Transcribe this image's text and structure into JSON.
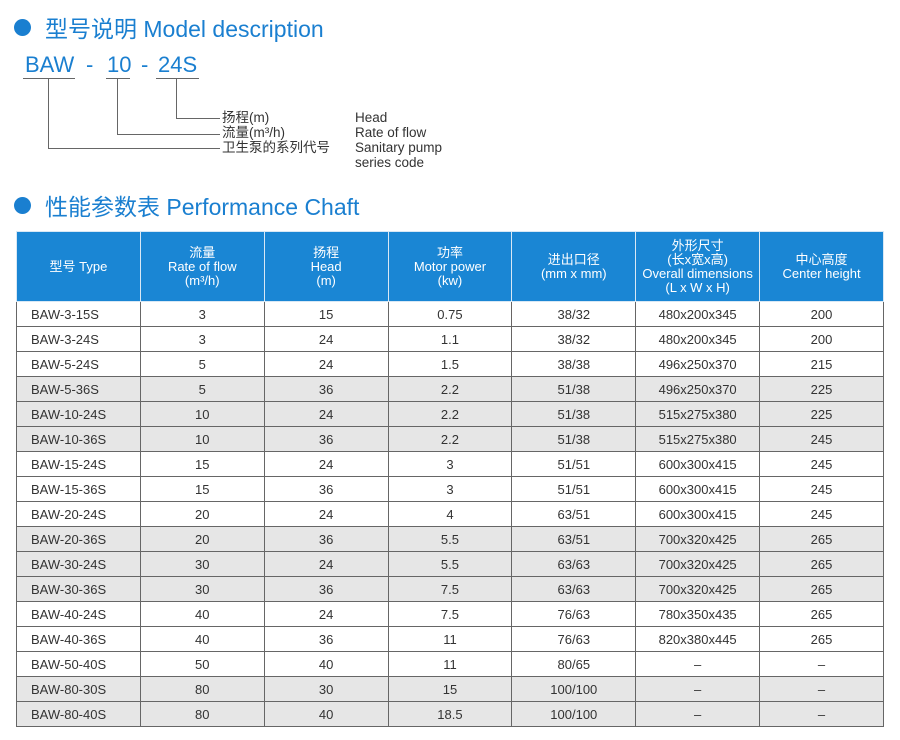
{
  "section1": {
    "title": "型号说明 Model description"
  },
  "model_code": {
    "part1": "BAW",
    "sep1": "-",
    "part2": "10",
    "sep2": "-",
    "part3": "24S"
  },
  "legend": [
    {
      "cn": "扬程(m)",
      "en": "Head"
    },
    {
      "cn": "流量(m³/h)",
      "en": "Rate of flow"
    },
    {
      "cn": "卫生泵的系列代号",
      "en": "Sanitary pump",
      "en2": "series code"
    }
  ],
  "section2": {
    "title": "性能参数表 Performance Chaft"
  },
  "colors": {
    "accent": "#1a7fd0",
    "header_bg": "#1a86d4",
    "stripe": "#e6e6e6"
  },
  "table": {
    "headers": [
      [
        "型号 Type"
      ],
      [
        "流量",
        "Rate of flow",
        "(m³/h)"
      ],
      [
        "扬程",
        "Head",
        "(m)"
      ],
      [
        "功率",
        "Motor power",
        "(kw)"
      ],
      [
        "进出口径",
        "(mm x mm)"
      ],
      [
        "外形尺寸",
        "(长x宽x高)",
        "Overall dimensions",
        "(L x W x H)"
      ],
      [
        "中心高度",
        "Center height"
      ]
    ],
    "rows": [
      [
        "BAW-3-15S",
        "3",
        "15",
        "0.75",
        "38/32",
        "480x200x345",
        "200"
      ],
      [
        "BAW-3-24S",
        "3",
        "24",
        "1.1",
        "38/32",
        "480x200x345",
        "200"
      ],
      [
        "BAW-5-24S",
        "5",
        "24",
        "1.5",
        "38/38",
        "496x250x370",
        "215"
      ],
      [
        "BAW-5-36S",
        "5",
        "36",
        "2.2",
        "51/38",
        "496x250x370",
        "225"
      ],
      [
        "BAW-10-24S",
        "10",
        "24",
        "2.2",
        "51/38",
        "515x275x380",
        "225"
      ],
      [
        "BAW-10-36S",
        "10",
        "36",
        "2.2",
        "51/38",
        "515x275x380",
        "245"
      ],
      [
        "BAW-15-24S",
        "15",
        "24",
        "3",
        "51/51",
        "600x300x415",
        "245"
      ],
      [
        "BAW-15-36S",
        "15",
        "36",
        "3",
        "51/51",
        "600x300x415",
        "245"
      ],
      [
        "BAW-20-24S",
        "20",
        "24",
        "4",
        "63/51",
        "600x300x415",
        "245"
      ],
      [
        "BAW-20-36S",
        "20",
        "36",
        "5.5",
        "63/51",
        "700x320x425",
        "265"
      ],
      [
        "BAW-30-24S",
        "30",
        "24",
        "5.5",
        "63/63",
        "700x320x425",
        "265"
      ],
      [
        "BAW-30-36S",
        "30",
        "36",
        "7.5",
        "63/63",
        "700x320x425",
        "265"
      ],
      [
        "BAW-40-24S",
        "40",
        "24",
        "7.5",
        "76/63",
        "780x350x435",
        "265"
      ],
      [
        "BAW-40-36S",
        "40",
        "36",
        "11",
        "76/63",
        "820x380x445",
        "265"
      ],
      [
        "BAW-50-40S",
        "50",
        "40",
        "11",
        "80/65",
        "–",
        "–"
      ],
      [
        "BAW-80-30S",
        "80",
        "30",
        "15",
        "100/100",
        "–",
        "–"
      ],
      [
        "BAW-80-40S",
        "80",
        "40",
        "18.5",
        "100/100",
        "–",
        "–"
      ]
    ]
  }
}
